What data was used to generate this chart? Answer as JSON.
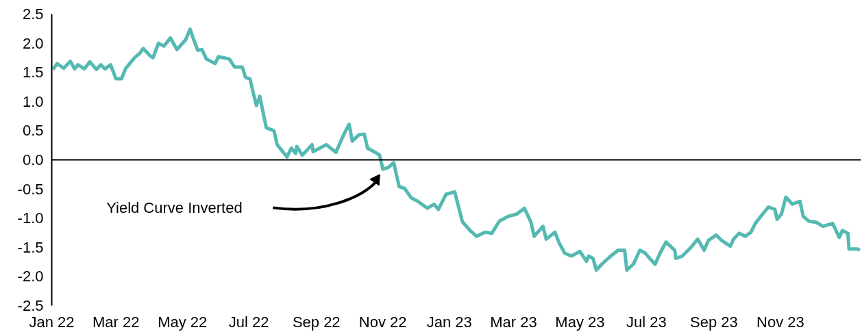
{
  "chart_data": {
    "type": "line",
    "x": [
      "2022-01-02",
      "2022-01-06",
      "2022-01-12",
      "2022-01-18",
      "2022-01-22",
      "2022-01-25",
      "2022-01-31",
      "2022-02-05",
      "2022-02-11",
      "2022-02-15",
      "2022-02-19",
      "2022-02-24",
      "2022-03-01",
      "2022-03-06",
      "2022-03-10",
      "2022-03-18",
      "2022-03-23",
      "2022-03-26",
      "2022-04-01",
      "2022-04-04",
      "2022-04-09",
      "2022-04-14",
      "2022-04-20",
      "2022-04-26",
      "2022-05-04",
      "2022-05-08",
      "2022-05-12",
      "2022-05-15",
      "2022-05-19",
      "2022-05-23",
      "2022-05-31",
      "2022-06-03",
      "2022-06-13",
      "2022-06-18",
      "2022-06-25",
      "2022-06-28",
      "2022-07-02",
      "2022-07-05",
      "2022-07-08",
      "2022-07-11",
      "2022-07-17",
      "2022-07-24",
      "2022-07-27",
      "2022-08-05",
      "2022-08-09",
      "2022-08-13",
      "2022-08-14",
      "2022-08-19",
      "2022-08-28",
      "2022-08-29",
      "2022-09-10",
      "2022-09-19",
      "2022-09-26",
      "2022-10-01",
      "2022-10-04",
      "2022-10-10",
      "2022-10-15",
      "2022-10-18",
      "2022-10-25",
      "2022-10-29",
      "2022-11-01",
      "2022-11-06",
      "2022-11-11",
      "2022-11-16",
      "2022-11-21",
      "2022-11-27",
      "2022-12-03",
      "2022-12-12",
      "2022-12-18",
      "2022-12-22",
      "2022-12-29",
      "2023-01-06",
      "2023-01-13",
      "2023-01-20",
      "2023-01-26",
      "2023-02-03",
      "2023-02-09",
      "2023-02-16",
      "2023-02-24",
      "2023-03-04",
      "2023-03-11",
      "2023-03-17",
      "2023-03-20",
      "2023-03-28",
      "2023-03-31",
      "2023-04-08",
      "2023-04-12",
      "2023-04-17",
      "2023-04-23",
      "2023-05-01",
      "2023-05-07",
      "2023-05-09",
      "2023-05-13",
      "2023-05-16",
      "2023-05-21",
      "2023-05-28",
      "2023-06-05",
      "2023-06-11",
      "2023-06-13",
      "2023-06-19",
      "2023-06-25",
      "2023-06-30",
      "2023-07-04",
      "2023-07-09",
      "2023-07-13",
      "2023-07-19",
      "2023-07-27",
      "2023-07-28",
      "2023-08-03",
      "2023-08-11",
      "2023-08-17",
      "2023-08-23",
      "2023-08-27",
      "2023-09-03",
      "2023-09-08",
      "2023-09-16",
      "2023-09-19",
      "2023-09-24",
      "2023-09-30",
      "2023-10-05",
      "2023-10-09",
      "2023-10-14",
      "2023-10-21",
      "2023-10-27",
      "2023-10-29",
      "2023-11-02",
      "2023-11-06",
      "2023-11-12",
      "2023-11-19",
      "2023-11-22",
      "2023-11-27",
      "2023-12-04",
      "2023-12-10",
      "2023-12-19",
      "2023-12-25",
      "2023-12-28",
      "2024-01-02",
      "2024-01-03",
      "2024-01-11",
      "2024-01-13"
    ],
    "series": [
      {
        "color": "#55b9b2",
        "values": [
          1.55,
          1.65,
          1.57,
          1.69,
          1.56,
          1.63,
          1.56,
          1.68,
          1.55,
          1.63,
          1.56,
          1.63,
          1.39,
          1.39,
          1.57,
          1.75,
          1.83,
          1.91,
          1.79,
          1.75,
          2.0,
          1.95,
          2.09,
          1.89,
          2.06,
          2.24,
          2.03,
          1.88,
          1.89,
          1.73,
          1.65,
          1.77,
          1.73,
          1.59,
          1.59,
          1.41,
          1.39,
          1.15,
          0.93,
          1.09,
          0.55,
          0.5,
          0.26,
          0.05,
          0.2,
          0.11,
          0.23,
          0.08,
          0.26,
          0.14,
          0.26,
          0.13,
          0.43,
          0.61,
          0.32,
          0.43,
          0.44,
          0.2,
          0.13,
          0.08,
          -0.16,
          -0.13,
          -0.05,
          -0.46,
          -0.49,
          -0.65,
          -0.71,
          -0.83,
          -0.76,
          -0.85,
          -0.59,
          -0.55,
          -1.06,
          -1.21,
          -1.31,
          -1.24,
          -1.26,
          -1.05,
          -0.97,
          -0.93,
          -0.83,
          -1.07,
          -1.31,
          -1.14,
          -1.36,
          -1.24,
          -1.43,
          -1.6,
          -1.65,
          -1.57,
          -1.74,
          -1.65,
          -1.69,
          -1.89,
          -1.79,
          -1.67,
          -1.55,
          -1.55,
          -1.89,
          -1.79,
          -1.55,
          -1.6,
          -1.69,
          -1.79,
          -1.62,
          -1.41,
          -1.55,
          -1.69,
          -1.65,
          -1.5,
          -1.36,
          -1.55,
          -1.38,
          -1.29,
          -1.38,
          -1.48,
          -1.36,
          -1.26,
          -1.31,
          -1.24,
          -1.09,
          -0.97,
          -0.81,
          -0.85,
          -1.02,
          -0.93,
          -0.64,
          -0.76,
          -0.71,
          -0.97,
          -1.05,
          -1.07,
          -1.14,
          -1.09,
          -1.33,
          -1.21,
          -1.26,
          -1.53,
          -1.53,
          -1.55
        ]
      }
    ],
    "xlim": [
      "2022-01-01",
      "2024-01-14"
    ],
    "xticks": [
      {
        "value": "2022-01-01",
        "label": "Jan 22"
      },
      {
        "value": "2022-03-01",
        "label": "Mar 22"
      },
      {
        "value": "2022-05-01",
        "label": "May 22"
      },
      {
        "value": "2022-07-01",
        "label": "Jul 22"
      },
      {
        "value": "2022-09-01",
        "label": "Sep 22"
      },
      {
        "value": "2022-11-01",
        "label": "Nov 22"
      },
      {
        "value": "2023-01-01",
        "label": "Jan 23"
      },
      {
        "value": "2023-03-01",
        "label": "Mar 23"
      },
      {
        "value": "2023-05-01",
        "label": "May 23"
      },
      {
        "value": "2023-07-01",
        "label": "Jul 23"
      },
      {
        "value": "2023-09-01",
        "label": "Sep 23"
      },
      {
        "value": "2023-11-01",
        "label": "Nov 23"
      }
    ],
    "ylim": [
      -2.5,
      2.5
    ],
    "yticks": [
      2.5,
      {
        "value": 2,
        "label": "2.0"
      },
      1.5,
      {
        "value": 1,
        "label": "1.0"
      },
      0.5,
      {
        "value": 0,
        "label": "0.0"
      },
      -0.5,
      {
        "value": -1,
        "label": "-1.0"
      },
      -1.5,
      {
        "value": -2,
        "label": "-2.0"
      },
      -2.5
    ],
    "ref_lines": [
      {
        "axis": "y",
        "value": 0,
        "color": "#000000"
      }
    ],
    "annotations": [
      "Yield Curve Inverted"
    ],
    "grid": false,
    "marker": "none",
    "line_style": "solid"
  }
}
